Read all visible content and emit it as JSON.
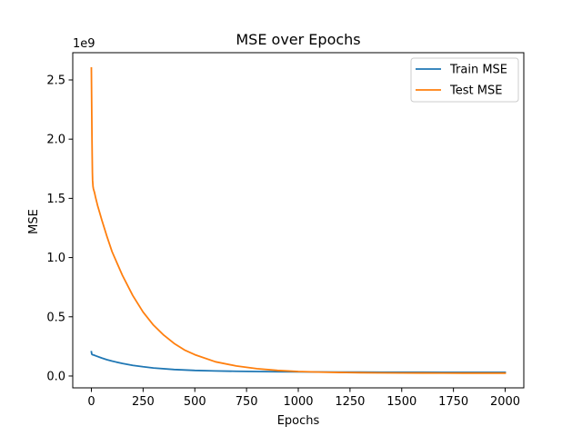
{
  "chart_data": {
    "type": "line",
    "title": "MSE over Epochs",
    "xlabel": "Epochs",
    "ylabel": "MSE",
    "y_offset_text": "1e9",
    "xlim": [
      -90,
      2090
    ],
    "ylim": [
      -100000000,
      2730000000
    ],
    "x_ticks": [
      0,
      250,
      500,
      750,
      1000,
      1250,
      1500,
      1750,
      2000
    ],
    "x_tick_labels": [
      "0",
      "250",
      "500",
      "750",
      "1000",
      "1250",
      "1500",
      "1750",
      "2000"
    ],
    "y_ticks": [
      0,
      500000000,
      1000000000,
      1500000000,
      2000000000,
      2500000000
    ],
    "y_tick_labels": [
      "0.0",
      "0.5",
      "1.0",
      "1.5",
      "2.0",
      "2.5"
    ],
    "grid": false,
    "legend_position": "top-right",
    "series": [
      {
        "name": "Train MSE",
        "color": "#1f77b4",
        "x": [
          0,
          2,
          5,
          10,
          25,
          50,
          75,
          100,
          150,
          200,
          250,
          300,
          400,
          500,
          600,
          700,
          800,
          900,
          1000,
          1100,
          1200,
          1300,
          1400,
          1500,
          1600,
          1700,
          1800,
          1900,
          2000
        ],
        "y": [
          205000000,
          185000000,
          180000000,
          178000000,
          168000000,
          152000000,
          138000000,
          126000000,
          106000000,
          90000000,
          78000000,
          68000000,
          55000000,
          47000000,
          43000000,
          40000000,
          38000000,
          36000000,
          35000000,
          34000000,
          33500000,
          33000000,
          32500000,
          32000000,
          32000000,
          31500000,
          31500000,
          31000000,
          31000000
        ]
      },
      {
        "name": "Test MSE",
        "color": "#ff7f0e",
        "x": [
          0,
          1,
          2,
          3,
          4,
          5,
          6,
          8,
          10,
          15,
          20,
          30,
          40,
          50,
          75,
          100,
          150,
          200,
          250,
          300,
          350,
          400,
          450,
          500,
          600,
          700,
          800,
          900,
          1000,
          1100,
          1200,
          1300,
          1400,
          1500,
          1600,
          1700,
          1800,
          1900,
          2000
        ],
        "y": [
          2600000000,
          2400000000,
          2200000000,
          2000000000,
          1850000000,
          1720000000,
          1650000000,
          1600000000,
          1580000000,
          1550000000,
          1510000000,
          1440000000,
          1380000000,
          1320000000,
          1180000000,
          1050000000,
          850000000,
          680000000,
          540000000,
          430000000,
          345000000,
          275000000,
          220000000,
          180000000,
          120000000,
          85000000,
          62000000,
          47000000,
          38000000,
          33000000,
          30000000,
          28000000,
          26500000,
          25500000,
          25000000,
          24500000,
          24000000,
          24000000,
          24000000
        ]
      }
    ]
  }
}
